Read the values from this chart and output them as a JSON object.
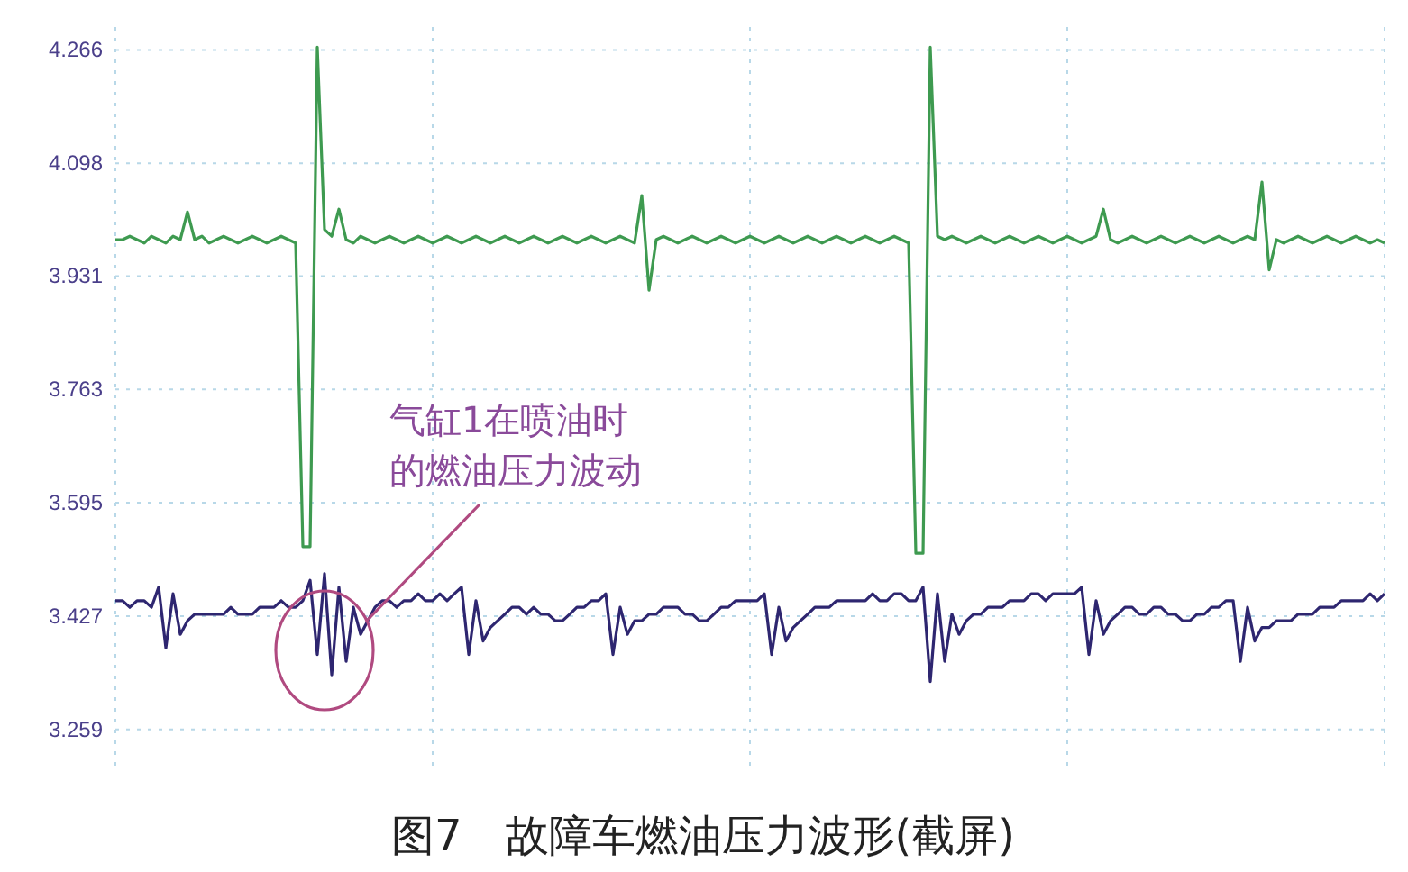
{
  "chart_data": {
    "type": "line",
    "title": "图7　故障车燃油压力波形(截屏)",
    "annotations": [
      "气缸1在喷油时",
      "的燃油压力波动"
    ],
    "categories": [
      null,
      null,
      null,
      null,
      null,
      null,
      null,
      null,
      null,
      null,
      null,
      null,
      null,
      null,
      null,
      null,
      null,
      null,
      null,
      null,
      null,
      null,
      null,
      null,
      null,
      null,
      null,
      null,
      null,
      null,
      null,
      null,
      null,
      null,
      null,
      null,
      null,
      null,
      null,
      null,
      null,
      null,
      null,
      null,
      null,
      null,
      null,
      null,
      null,
      null,
      null,
      null,
      null,
      null,
      null,
      null,
      null,
      null,
      null,
      null,
      null,
      null,
      null,
      null,
      null,
      null,
      null,
      null,
      null,
      null,
      null,
      null,
      null,
      null,
      null,
      null,
      null,
      null,
      null,
      null,
      null,
      null,
      null,
      null,
      null,
      null,
      null,
      null,
      null,
      null,
      null,
      null,
      null,
      null,
      null,
      null,
      null,
      null,
      null,
      null,
      null,
      null,
      null,
      null,
      null,
      null,
      null,
      null,
      null,
      null,
      null,
      null,
      null,
      null,
      null,
      null,
      null,
      null,
      null,
      null,
      null,
      null,
      null,
      null,
      null,
      null,
      null,
      null,
      null,
      null,
      null,
      null,
      null,
      null,
      null,
      null,
      null,
      null,
      null,
      null,
      null,
      null,
      null,
      null,
      null,
      null,
      null,
      null,
      null,
      null,
      null,
      null,
      null,
      null,
      null,
      null,
      null,
      null,
      null,
      null,
      null,
      null,
      null,
      null,
      null,
      null,
      null,
      null,
      null,
      null,
      null,
      null,
      null,
      null,
      null,
      null,
      null
    ],
    "series": [
      {
        "color": "#3e9a50",
        "values": [
          3.985,
          3.985,
          3.99,
          3.985,
          3.98,
          3.99,
          3.985,
          3.98,
          3.99,
          3.985,
          4.026,
          3.985,
          3.99,
          3.98,
          3.985,
          3.99,
          3.985,
          3.98,
          3.985,
          3.99,
          3.985,
          3.98,
          3.985,
          3.99,
          3.985,
          3.98,
          3.53,
          3.53,
          4.27,
          4.0,
          3.99,
          4.03,
          3.985,
          3.98,
          3.99,
          3.985,
          3.98,
          3.985,
          3.99,
          3.985,
          3.98,
          3.985,
          3.99,
          3.985,
          3.98,
          3.985,
          3.99,
          3.985,
          3.98,
          3.985,
          3.99,
          3.985,
          3.98,
          3.985,
          3.99,
          3.985,
          3.98,
          3.985,
          3.99,
          3.985,
          3.98,
          3.985,
          3.99,
          3.985,
          3.98,
          3.985,
          3.99,
          3.985,
          3.98,
          3.985,
          3.99,
          3.985,
          3.98,
          4.05,
          3.91,
          3.985,
          3.99,
          3.985,
          3.98,
          3.985,
          3.99,
          3.985,
          3.98,
          3.985,
          3.99,
          3.985,
          3.98,
          3.985,
          3.99,
          3.985,
          3.98,
          3.985,
          3.99,
          3.985,
          3.98,
          3.985,
          3.99,
          3.985,
          3.98,
          3.985,
          3.99,
          3.985,
          3.98,
          3.985,
          3.99,
          3.985,
          3.98,
          3.985,
          3.99,
          3.985,
          3.98,
          3.52,
          3.52,
          4.27,
          3.99,
          3.985,
          3.99,
          3.985,
          3.98,
          3.985,
          3.99,
          3.985,
          3.98,
          3.985,
          3.99,
          3.985,
          3.98,
          3.985,
          3.99,
          3.985,
          3.98,
          3.985,
          3.99,
          3.985,
          3.98,
          3.985,
          3.99,
          4.03,
          3.985,
          3.98,
          3.985,
          3.99,
          3.985,
          3.98,
          3.985,
          3.99,
          3.985,
          3.98,
          3.985,
          3.99,
          3.985,
          3.98,
          3.985,
          3.99,
          3.985,
          3.98,
          3.985,
          3.99,
          3.985,
          4.07,
          3.94,
          3.985,
          3.98,
          3.985,
          3.99,
          3.985,
          3.98,
          3.985,
          3.99,
          3.985,
          3.98,
          3.985,
          3.99,
          3.985,
          3.98,
          3.985,
          3.98
        ]
      },
      {
        "color": "#2e2670",
        "values": [
          3.45,
          3.45,
          3.44,
          3.45,
          3.45,
          3.44,
          3.47,
          3.38,
          3.46,
          3.4,
          3.42,
          3.43,
          3.43,
          3.43,
          3.43,
          3.43,
          3.44,
          3.43,
          3.43,
          3.43,
          3.44,
          3.44,
          3.44,
          3.45,
          3.44,
          3.44,
          3.45,
          3.48,
          3.37,
          3.49,
          3.34,
          3.47,
          3.36,
          3.44,
          3.4,
          3.42,
          3.44,
          3.45,
          3.45,
          3.44,
          3.45,
          3.45,
          3.46,
          3.45,
          3.45,
          3.46,
          3.45,
          3.46,
          3.47,
          3.37,
          3.45,
          3.39,
          3.41,
          3.42,
          3.43,
          3.44,
          3.44,
          3.43,
          3.44,
          3.43,
          3.43,
          3.42,
          3.42,
          3.43,
          3.44,
          3.44,
          3.45,
          3.45,
          3.46,
          3.37,
          3.44,
          3.4,
          3.42,
          3.42,
          3.43,
          3.43,
          3.44,
          3.44,
          3.44,
          3.43,
          3.43,
          3.42,
          3.42,
          3.43,
          3.44,
          3.44,
          3.45,
          3.45,
          3.45,
          3.45,
          3.46,
          3.37,
          3.44,
          3.39,
          3.41,
          3.42,
          3.43,
          3.44,
          3.44,
          3.44,
          3.45,
          3.45,
          3.45,
          3.45,
          3.45,
          3.46,
          3.45,
          3.45,
          3.46,
          3.46,
          3.45,
          3.45,
          3.47,
          3.33,
          3.46,
          3.36,
          3.43,
          3.4,
          3.42,
          3.43,
          3.43,
          3.44,
          3.44,
          3.44,
          3.45,
          3.45,
          3.45,
          3.46,
          3.46,
          3.45,
          3.46,
          3.46,
          3.46,
          3.46,
          3.47,
          3.37,
          3.45,
          3.4,
          3.42,
          3.43,
          3.44,
          3.44,
          3.43,
          3.43,
          3.44,
          3.44,
          3.43,
          3.43,
          3.42,
          3.42,
          3.43,
          3.43,
          3.44,
          3.44,
          3.45,
          3.45,
          3.36,
          3.44,
          3.39,
          3.41,
          3.41,
          3.42,
          3.42,
          3.42,
          3.43,
          3.43,
          3.43,
          3.44,
          3.44,
          3.44,
          3.45,
          3.45,
          3.45,
          3.45,
          3.46,
          3.45,
          3.46
        ]
      }
    ],
    "ylim": [
      3.2,
      4.3
    ],
    "yticks": [
      3.259,
      3.427,
      3.595,
      3.763,
      3.931,
      4.098,
      4.266
    ],
    "grid": true,
    "tick_labels": "y",
    "marker": "none",
    "line_style": "solid"
  }
}
